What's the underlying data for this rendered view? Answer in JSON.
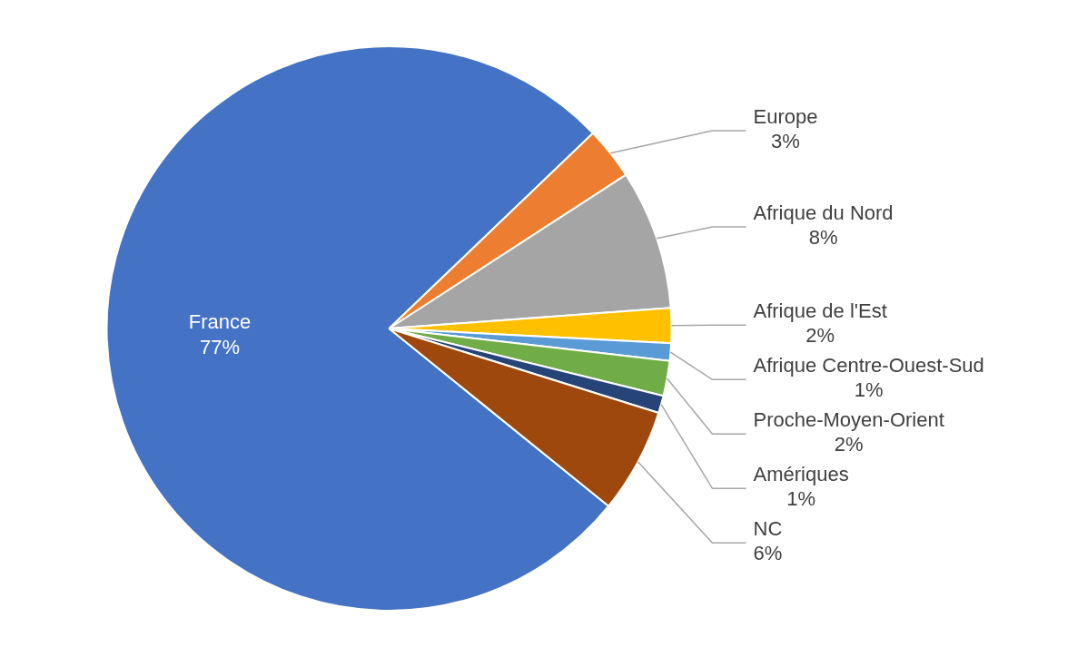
{
  "chart_data": {
    "type": "pie",
    "categories": [
      "France",
      "Europe",
      "Afrique du Nord",
      "Afrique de l'Est",
      "Afrique Centre-Ouest-Sud",
      "Proche-Moyen-Orient",
      "Amériques",
      "NC"
    ],
    "values": [
      77,
      3,
      8,
      2,
      1,
      2,
      1,
      6
    ],
    "value_labels": [
      "77%",
      "3%",
      "8%",
      "2%",
      "1%",
      "2%",
      "1%",
      "6%"
    ],
    "colors": [
      "#4472c4",
      "#ed7d31",
      "#a5a5a5",
      "#ffc000",
      "#5b9bd5",
      "#70ad47",
      "#264478",
      "#9e480e"
    ],
    "legend": false
  }
}
